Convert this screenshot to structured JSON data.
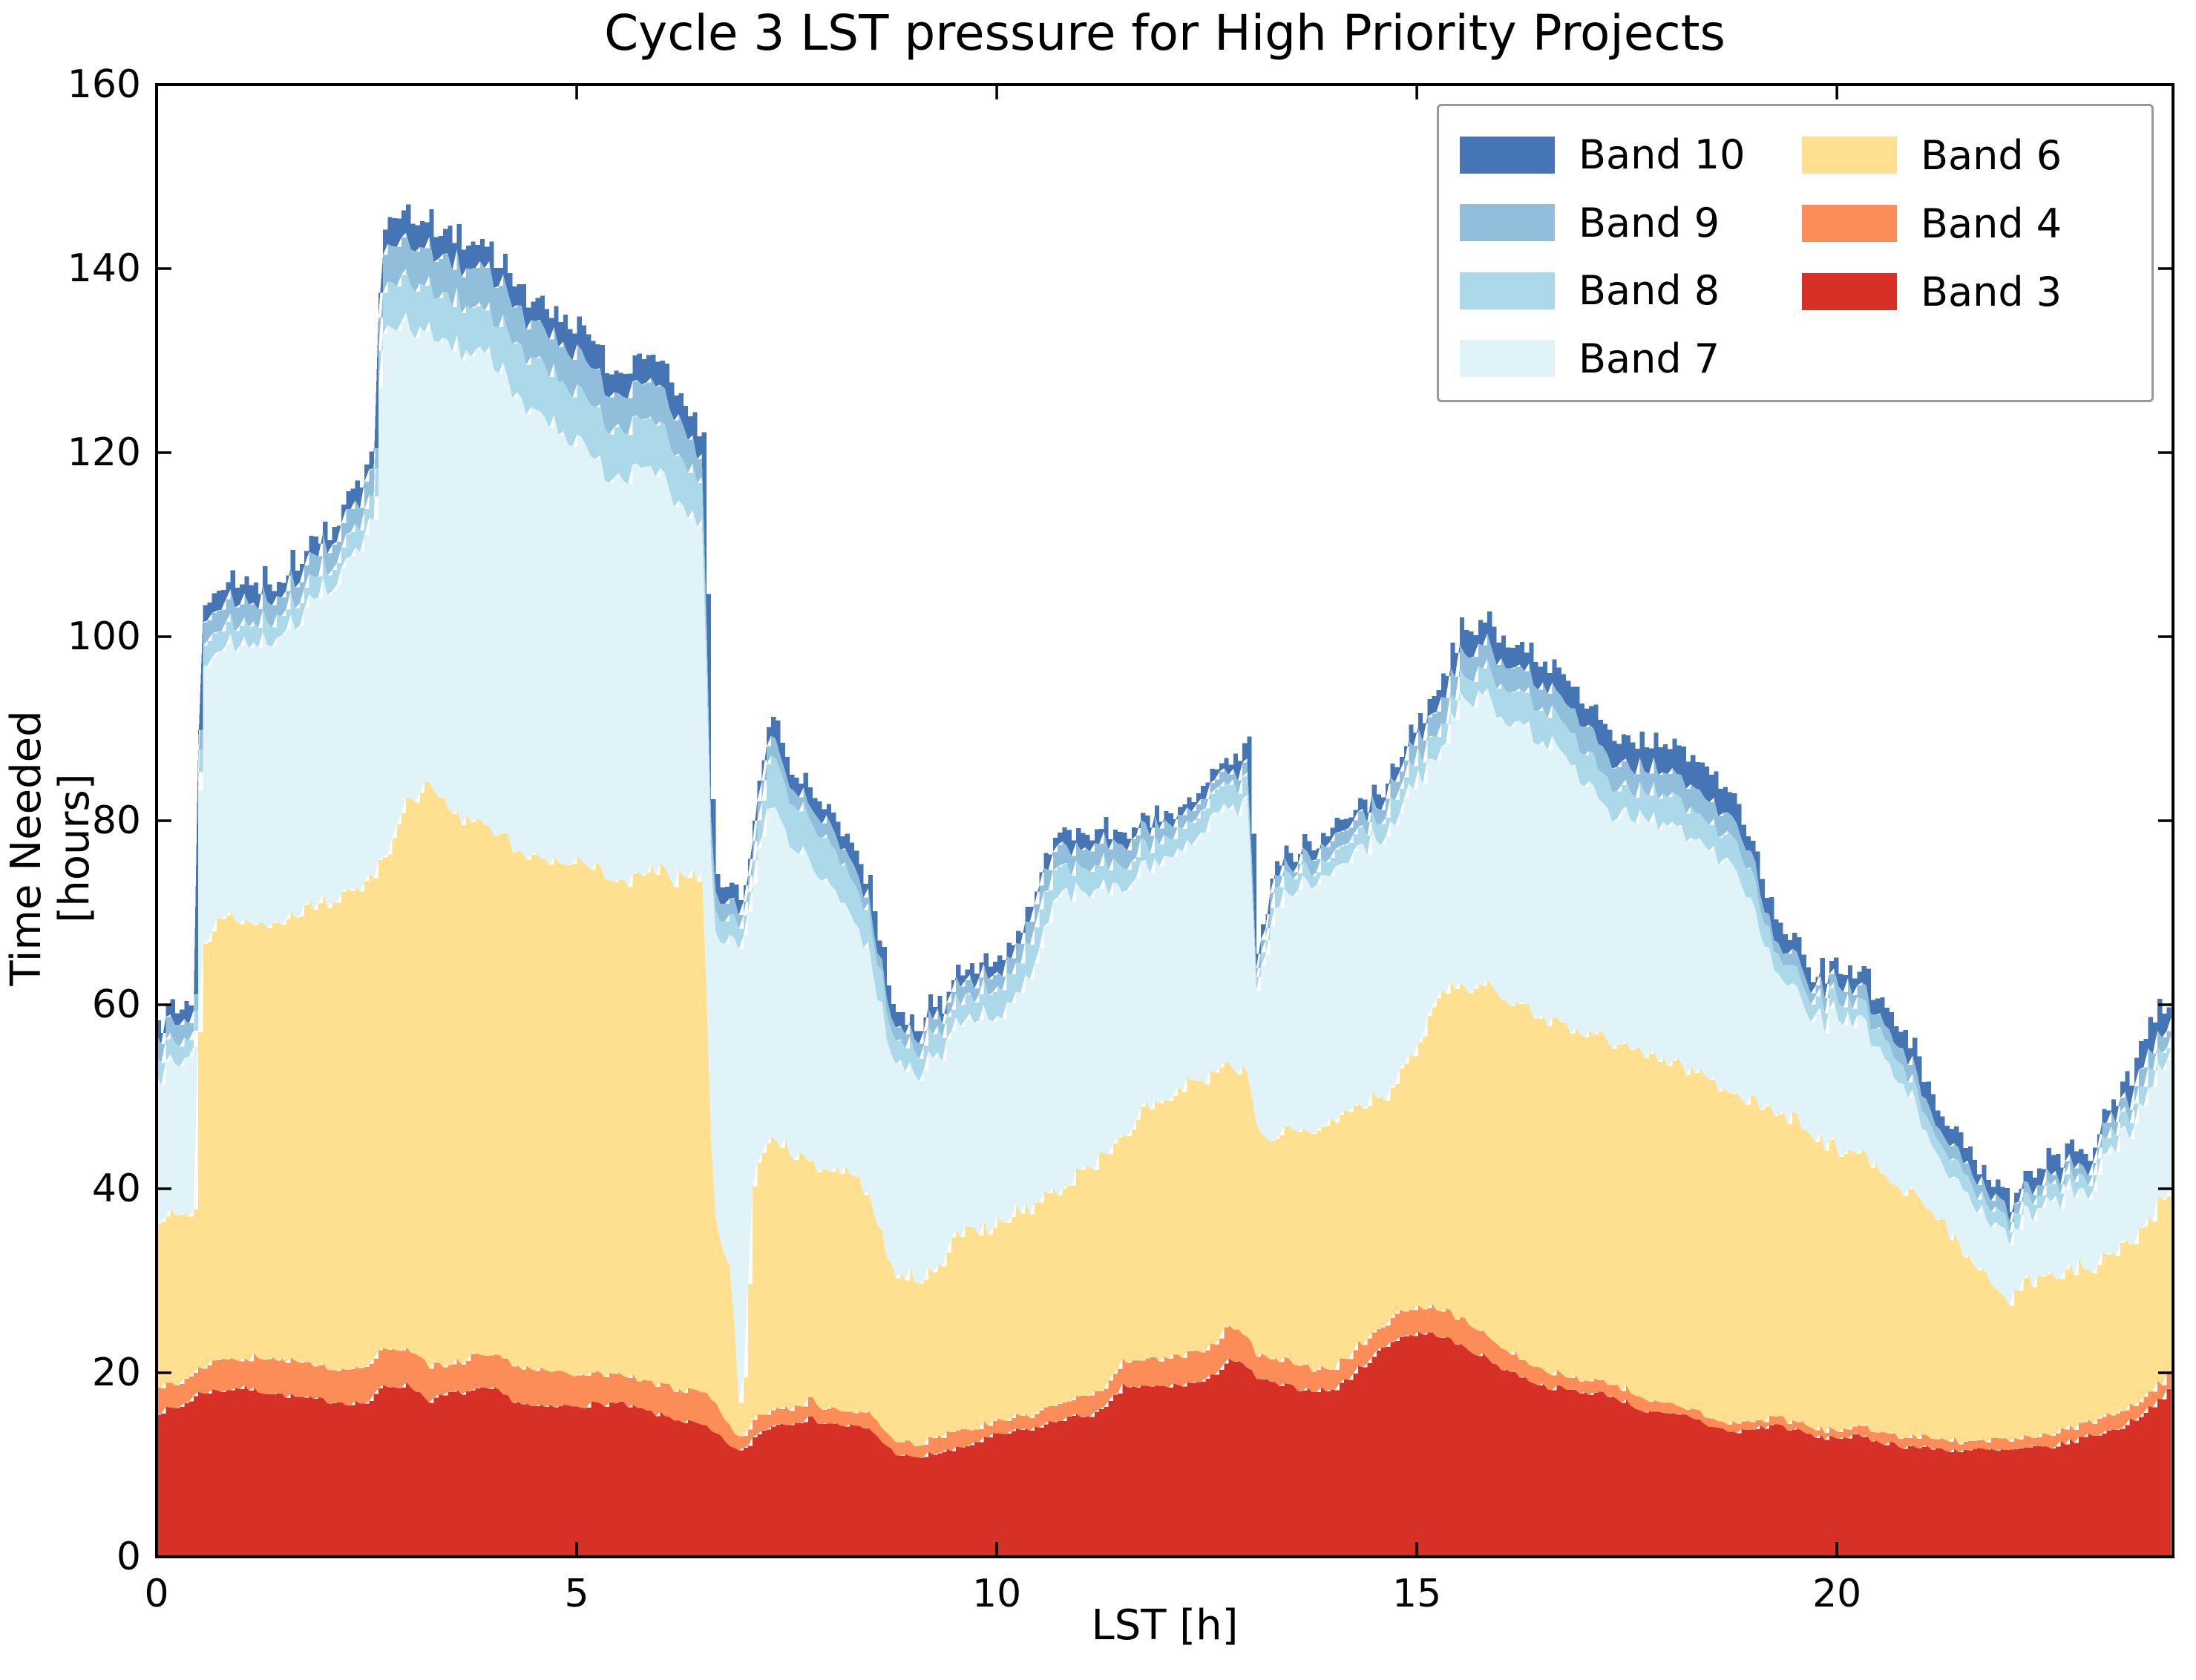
{
  "figure": {
    "title": "Cycle 3 LST pressure for High Priority Projects",
    "xlabel": "LST [h]",
    "ylabel": "Time Needed [hours]"
  },
  "axes": {
    "xlim": [
      0,
      24
    ],
    "ylim": [
      0,
      160
    ],
    "x_ticks": [
      0,
      5,
      10,
      15,
      20
    ],
    "y_ticks": [
      0,
      20,
      40,
      60,
      80,
      100,
      120,
      140,
      160
    ],
    "spine_color": "#000000",
    "tick_direction": "in"
  },
  "legend": {
    "columns": [
      [
        {
          "label": "Band 10",
          "color": "#4575b4"
        },
        {
          "label": "Band 9",
          "color": "#91bfdb"
        },
        {
          "label": "Band 8",
          "color": "#abd9e9"
        },
        {
          "label": "Band 7",
          "color": "#e0f3f8"
        }
      ],
      [
        {
          "label": "Band 6",
          "color": "#fee090"
        },
        {
          "label": "Band 4",
          "color": "#fc8d59"
        },
        {
          "label": "Band 3",
          "color": "#d73027"
        }
      ]
    ]
  },
  "chart_data": {
    "type": "area",
    "stacked": true,
    "title": "Cycle 3 LST pressure for High Priority Projects",
    "xlabel": "LST [h]",
    "ylabel": "Time Needed [hours]",
    "xlim": [
      0,
      24
    ],
    "ylim": [
      0,
      160
    ],
    "grid": false,
    "legend_position": "upper right",
    "noise_seed": 7,
    "noise_step_h": 0.055,
    "x": [
      0,
      0.25,
      0.45,
      0.52,
      0.75,
      1,
      1.25,
      1.5,
      1.75,
      2,
      2.25,
      2.5,
      2.6,
      2.66,
      3,
      3.25,
      3.5,
      3.75,
      4,
      4.25,
      4.5,
      4.75,
      5,
      5.25,
      5.5,
      5.75,
      6,
      6.25,
      6.5,
      6.62,
      6.85,
      6.95,
      7.1,
      7.3,
      7.5,
      7.75,
      8,
      8.25,
      8.5,
      8.75,
      9,
      9.25,
      9.5,
      9.75,
      10,
      10.25,
      10.5,
      10.75,
      11,
      11.25,
      11.5,
      11.75,
      12,
      12.25,
      12.5,
      12.75,
      13,
      13.08,
      13.25,
      13.5,
      13.75,
      14,
      14.25,
      14.5,
      14.75,
      15,
      15.25,
      15.5,
      15.75,
      16,
      16.25,
      16.5,
      16.75,
      17,
      17.25,
      17.5,
      17.75,
      18,
      18.25,
      18.5,
      18.75,
      19,
      19.25,
      19.5,
      19.75,
      20,
      20.25,
      20.5,
      20.75,
      21,
      21.25,
      21.5,
      21.75,
      21.95,
      22.25,
      22.5,
      22.75,
      23,
      23.3,
      23.5,
      23.75,
      24
    ],
    "series": [
      {
        "name": "Band 3",
        "color": "#d73027",
        "noise_amp": 0.35,
        "values": [
          15.8,
          16.2,
          17.5,
          17.9,
          18.1,
          18.4,
          18.0,
          17.6,
          17.2,
          17.0,
          16.8,
          16.7,
          17.5,
          18.5,
          18.7,
          17.0,
          17.8,
          18.0,
          18.2,
          17.0,
          16.2,
          16.3,
          16.5,
          16.6,
          16.7,
          16.0,
          15.4,
          14.8,
          14.2,
          13.5,
          12.0,
          11.2,
          13.0,
          14.3,
          14.6,
          15.0,
          14.5,
          14.2,
          13.8,
          11.5,
          10.6,
          11.3,
          11.6,
          12.5,
          13.2,
          13.7,
          14.1,
          15.0,
          15.3,
          15.8,
          18.6,
          18.4,
          18.5,
          18.8,
          19.1,
          21.6,
          20.4,
          19.5,
          18.9,
          18.4,
          18.2,
          18.1,
          20.0,
          22.1,
          23.8,
          24.3,
          24.2,
          23.0,
          22.0,
          20.6,
          19.6,
          18.6,
          18.2,
          17.9,
          17.7,
          16.8,
          15.6,
          15.4,
          15.3,
          14.2,
          13.5,
          13.9,
          14.4,
          13.8,
          13.0,
          13.0,
          13.1,
          12.6,
          12.1,
          11.9,
          11.7,
          11.6,
          11.6,
          11.5,
          11.7,
          11.9,
          12.5,
          13.2,
          13.8,
          14.8,
          16.5,
          18.5
        ]
      },
      {
        "name": "Band 4",
        "color": "#fc8d59",
        "noise_amp": 0.3,
        "values": [
          2.7,
          2.6,
          2.5,
          2.6,
          3.7,
          3.1,
          3.6,
          4.0,
          3.9,
          3.7,
          3.7,
          3.7,
          4.0,
          3.9,
          3.9,
          4.0,
          2.8,
          3.9,
          3.7,
          3.8,
          3.8,
          3.7,
          3.4,
          3.2,
          3.0,
          3.1,
          3.2,
          3.4,
          3.6,
          3.3,
          2.0,
          1.2,
          2.0,
          1.8,
          1.8,
          1.9,
          1.8,
          1.6,
          1.6,
          1.5,
          1.4,
          1.7,
          1.8,
          1.6,
          1.4,
          1.4,
          1.6,
          1.8,
          2.1,
          2.0,
          2.9,
          2.9,
          2.9,
          3.2,
          3.3,
          3.9,
          3.1,
          2.5,
          2.6,
          2.6,
          2.5,
          2.4,
          2.5,
          2.4,
          2.7,
          2.7,
          3.1,
          3.0,
          2.5,
          2.2,
          2.1,
          1.8,
          1.6,
          1.4,
          1.4,
          1.4,
          1.2,
          0.9,
          0.8,
          0.9,
          0.8,
          0.9,
          0.9,
          0.9,
          0.8,
          0.9,
          1.1,
          1.1,
          1.1,
          1.1,
          1.1,
          1.1,
          1.1,
          1.1,
          1.1,
          1.2,
          1.4,
          1.5,
          1.7,
          1.6,
          1.7,
          1.7
        ]
      },
      {
        "name": "Band 6",
        "color": "#fee090",
        "noise_amp": 0.9,
        "values": [
          18.0,
          18.0,
          17.2,
          46.0,
          47.7,
          47.8,
          47.2,
          47.9,
          49.4,
          50.8,
          51.6,
          52.8,
          52.5,
          52.4,
          59.4,
          63.3,
          60.6,
          58.1,
          56.9,
          56.2,
          55.6,
          55.5,
          56.1,
          54.7,
          53.5,
          54.7,
          55.7,
          55.8,
          55.9,
          21.5,
          16.0,
          0.4,
          26.0,
          29.8,
          28.1,
          26.1,
          26.1,
          25.9,
          23.6,
          18.5,
          18.0,
          18.5,
          21.1,
          21.5,
          21.8,
          22.4,
          22.9,
          23.2,
          24.3,
          25.2,
          24.5,
          27.2,
          28.1,
          28.9,
          29.6,
          28.0,
          28.5,
          25.0,
          24.0,
          25.0,
          26.3,
          27.5,
          26.5,
          25.5,
          25.1,
          28.0,
          34.5,
          36.0,
          37.9,
          38.7,
          38.3,
          38.6,
          38.2,
          37.7,
          37.4,
          37.3,
          37.7,
          37.2,
          36.9,
          36.9,
          36.2,
          34.7,
          33.3,
          32.8,
          31.7,
          30.9,
          29.8,
          28.8,
          26.8,
          25.5,
          23.6,
          20.8,
          18.3,
          14.9,
          16.7,
          17.0,
          17.1,
          17.1,
          17.7,
          18.1,
          19.0,
          20.3
        ]
      },
      {
        "name": "Band 7",
        "color": "#e0f3f8",
        "noise_amp": 0.9,
        "values": [
          15.6,
          16.7,
          18.3,
          30.5,
          29.0,
          29.9,
          31.0,
          31.0,
          32.5,
          33.7,
          35.8,
          37.8,
          38.5,
          58.5,
          51.5,
          49.2,
          51.1,
          51.2,
          51.2,
          50.0,
          48.2,
          47.0,
          46.0,
          44.5,
          43.3,
          44.2,
          43.2,
          40.5,
          37.8,
          29.7,
          37.0,
          53.2,
          33.0,
          36.4,
          34.0,
          32.5,
          31.1,
          28.0,
          26.0,
          23.0,
          22.5,
          23.0,
          22.5,
          22.9,
          22.6,
          23.7,
          27.4,
          33.0,
          30.0,
          29.5,
          27.2,
          26.0,
          26.0,
          25.1,
          28.0,
          27.8,
          29.5,
          13.5,
          23.7,
          26.0,
          27.3,
          27.0,
          28.2,
          28.1,
          28.4,
          29.0,
          26.2,
          30.8,
          31.8,
          30.5,
          30.5,
          30.5,
          30.0,
          27.0,
          25.5,
          25.0,
          25.5,
          26.0,
          25.5,
          25.5,
          25.5,
          20.5,
          15.9,
          13.8,
          13.0,
          14.2,
          14.1,
          12.9,
          12.0,
          8.9,
          5.6,
          6.7,
          5.8,
          7.4,
          7.5,
          8.2,
          8.5,
          8.2,
          11.8,
          12.0,
          14.3,
          15.0
        ]
      },
      {
        "name": "Band 8",
        "color": "#abd9e9",
        "noise_amp": 0.3,
        "values": [
          2.5,
          2.3,
          2.0,
          2.5,
          2.3,
          2.3,
          2.2,
          2.4,
          2.5,
          2.4,
          2.3,
          2.6,
          2.5,
          4.7,
          5.0,
          4.8,
          5.0,
          5.0,
          4.8,
          5.6,
          5.7,
          5.7,
          5.5,
          5.5,
          5.3,
          5.5,
          5.3,
          5.3,
          4.5,
          2.5,
          2.3,
          2.3,
          2.5,
          5.6,
          5.0,
          4.5,
          4.5,
          4.1,
          4.0,
          2.5,
          2.5,
          2.8,
          2.5,
          2.5,
          3.1,
          3.3,
          4.0,
          3.0,
          2.6,
          2.5,
          2.4,
          2.3,
          2.1,
          2.3,
          2.6,
          2.6,
          2.5,
          1.5,
          1.8,
          2.3,
          1.3,
          1.8,
          1.9,
          1.9,
          2.5,
          2.5,
          2.5,
          2.2,
          2.6,
          3.5,
          3.5,
          3.5,
          3.5,
          3.5,
          3.2,
          3.0,
          3.0,
          3.3,
          3.1,
          2.9,
          3.0,
          3.0,
          2.0,
          2.0,
          2.0,
          2.0,
          2.1,
          2.0,
          2.0,
          1.8,
          1.9,
          1.7,
          1.7,
          1.4,
          1.6,
          1.6,
          1.5,
          1.7,
          2.0,
          2.0,
          2.0,
          1.5
        ]
      },
      {
        "name": "Band 9",
        "color": "#91bfdb",
        "noise_amp": 0.3,
        "values": [
          2.3,
          2.2,
          2.0,
          2.3,
          2.4,
          2.3,
          2.3,
          2.3,
          2.3,
          2.4,
          2.6,
          2.7,
          2.8,
          4.2,
          4.2,
          4.2,
          4.1,
          4.3,
          4.5,
          4.0,
          4.0,
          4.1,
          4.2,
          4.1,
          3.5,
          4.0,
          4.0,
          4.0,
          2.3,
          2.1,
          1.7,
          1.7,
          2.0,
          2.2,
          1.7,
          1.5,
          2.0,
          1.8,
          1.5,
          1.5,
          1.5,
          1.7,
          1.7,
          1.8,
          1.7,
          1.9,
          2.5,
          2.2,
          2.1,
          2.2,
          2.4,
          2.2,
          1.6,
          1.3,
          1.3,
          1.3,
          1.5,
          1.0,
          1.5,
          0.9,
          1.6,
          1.7,
          1.6,
          1.6,
          2.0,
          2.0,
          2.9,
          2.5,
          2.7,
          2.8,
          2.5,
          2.5,
          2.5,
          3.0,
          2.6,
          2.5,
          2.5,
          2.4,
          2.5,
          2.4,
          2.2,
          2.0,
          1.3,
          1.7,
          1.3,
          1.7,
          1.5,
          1.5,
          1.7,
          1.7,
          1.4,
          1.4,
          1.4,
          1.2,
          1.3,
          1.1,
          1.2,
          1.2,
          1.7,
          1.7,
          2.0,
          1.8
        ]
      },
      {
        "name": "Band 10",
        "color": "#4575b4",
        "noise_amp": 0.3,
        "values": [
          1.3,
          1.5,
          2.0,
          2.0,
          2.0,
          2.0,
          1.9,
          1.8,
          1.7,
          1.5,
          2.0,
          2.0,
          2.2,
          2.8,
          3.0,
          2.8,
          2.7,
          2.7,
          2.0,
          2.2,
          2.3,
          2.5,
          2.9,
          2.6,
          2.5,
          2.8,
          2.7,
          2.4,
          2.4,
          1.9,
          1.8,
          1.5,
          2.0,
          2.2,
          1.2,
          1.5,
          1.4,
          1.5,
          1.5,
          1.5,
          1.0,
          1.4,
          1.3,
          1.4,
          1.5,
          1.5,
          1.5,
          1.4,
          1.6,
          1.3,
          1.2,
          1.0,
          1.0,
          0.9,
          1.6,
          1.0,
          2.8,
          1.5,
          1.5,
          1.2,
          1.2,
          1.5,
          1.2,
          1.4,
          1.5,
          1.5,
          2.4,
          2.9,
          2.5,
          2.7,
          2.2,
          2.4,
          2.4,
          2.0,
          2.8,
          2.7,
          2.7,
          3.0,
          3.0,
          3.2,
          2.3,
          1.2,
          2.2,
          1.5,
          1.2,
          1.5,
          1.7,
          1.6,
          1.7,
          1.7,
          1.6,
          1.5,
          1.4,
          1.3,
          1.4,
          2.0,
          1.7,
          1.4,
          1.6,
          2.8,
          3.5,
          2.2
        ]
      }
    ]
  }
}
